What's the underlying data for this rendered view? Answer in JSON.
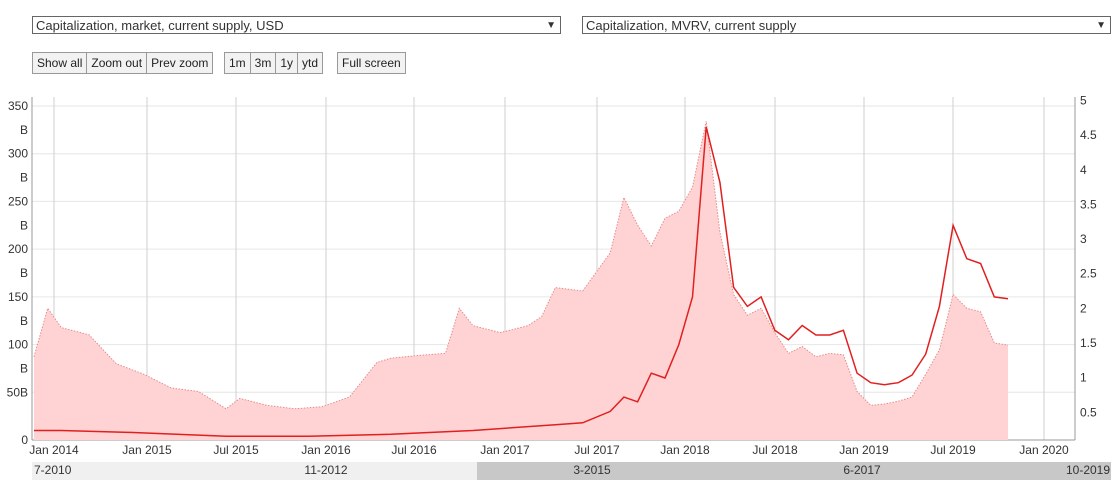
{
  "controls": {
    "left_select": "Capitalization, market, current supply, USD",
    "right_select": "Capitalization, MVRV, current supply",
    "zoom_buttons": [
      "Show all",
      "Zoom out",
      "Prev zoom"
    ],
    "range_buttons": [
      "1m",
      "3m",
      "1y",
      "ytd"
    ],
    "fullscreen_button": "Full screen",
    "dropdown_arrow": "▼"
  },
  "chart_data": {
    "type": "area",
    "x_ticks": [
      "Jan 2014",
      "Jan 2015",
      "Jul 2015",
      "Jan 2016",
      "Jul 2016",
      "Jan 2017",
      "Jul 2017",
      "Jan 2018",
      "Jul 2018",
      "Jan 2019",
      "Jul 2019",
      "Jan 2020"
    ],
    "x_range": [
      "2013-11",
      "2019-10"
    ],
    "y_left_ticks": [
      {
        "v": 0,
        "l1": "0",
        "l2": ""
      },
      {
        "v": 50,
        "l1": "50B",
        "l2": ""
      },
      {
        "v": 100,
        "l1": "100",
        "l2": "B"
      },
      {
        "v": 150,
        "l1": "150",
        "l2": "B"
      },
      {
        "v": 200,
        "l1": "200",
        "l2": "B"
      },
      {
        "v": 250,
        "l1": "250",
        "l2": "B"
      },
      {
        "v": 300,
        "l1": "300",
        "l2": "B"
      },
      {
        "v": 350,
        "l1": "350",
        "l2": "B"
      }
    ],
    "y_left_range": [
      0,
      350
    ],
    "y_right_ticks": [
      "0.5",
      "1",
      "1.5",
      "2",
      "2.5",
      "3",
      "3.5",
      "4",
      "4.5",
      "5"
    ],
    "y_right_range": [
      0.1,
      5.05
    ],
    "series": [
      {
        "axis": "right",
        "style": "dotted-area",
        "color": "#e88a8a",
        "fill": "#ffd3d3",
        "points": [
          [
            "2013-11",
            1.3
          ],
          [
            "2013-12",
            2.0
          ],
          [
            "2014-01",
            1.72
          ],
          [
            "2014-03",
            1.62
          ],
          [
            "2014-05",
            1.2
          ],
          [
            "2014-07",
            1.05
          ],
          [
            "2014-09",
            0.85
          ],
          [
            "2014-11",
            0.8
          ],
          [
            "2015-01",
            0.55
          ],
          [
            "2015-02",
            0.7
          ],
          [
            "2015-04",
            0.6
          ],
          [
            "2015-06",
            0.55
          ],
          [
            "2015-08",
            0.58
          ],
          [
            "2015-10",
            0.72
          ],
          [
            "2015-12",
            1.22
          ],
          [
            "2016-01",
            1.28
          ],
          [
            "2016-03",
            1.32
          ],
          [
            "2016-05",
            1.35
          ],
          [
            "2016-06",
            2.0
          ],
          [
            "2016-07",
            1.75
          ],
          [
            "2016-09",
            1.65
          ],
          [
            "2016-11",
            1.75
          ],
          [
            "2016-12",
            1.88
          ],
          [
            "2017-01",
            2.3
          ],
          [
            "2017-03",
            2.25
          ],
          [
            "2017-05",
            2.8
          ],
          [
            "2017-06",
            3.6
          ],
          [
            "2017-07",
            3.2
          ],
          [
            "2017-08",
            2.9
          ],
          [
            "2017-09",
            3.3
          ],
          [
            "2017-10",
            3.4
          ],
          [
            "2017-11",
            3.75
          ],
          [
            "2017-12",
            4.7
          ],
          [
            "2018-01",
            3.1
          ],
          [
            "2018-02",
            2.2
          ],
          [
            "2018-03",
            1.9
          ],
          [
            "2018-04",
            2.0
          ],
          [
            "2018-05",
            1.65
          ],
          [
            "2018-06",
            1.35
          ],
          [
            "2018-07",
            1.45
          ],
          [
            "2018-08",
            1.3
          ],
          [
            "2018-09",
            1.35
          ],
          [
            "2018-10",
            1.33
          ],
          [
            "2018-11",
            0.8
          ],
          [
            "2018-12",
            0.6
          ],
          [
            "2019-01",
            0.62
          ],
          [
            "2019-02",
            0.66
          ],
          [
            "2019-03",
            0.72
          ],
          [
            "2019-04",
            1.05
          ],
          [
            "2019-05",
            1.4
          ],
          [
            "2019-06",
            2.2
          ],
          [
            "2019-07",
            2.0
          ],
          [
            "2019-08",
            1.95
          ],
          [
            "2019-09",
            1.5
          ],
          [
            "2019-10",
            1.47
          ]
        ]
      },
      {
        "axis": "left",
        "style": "solid-line",
        "color": "#e02020",
        "points": [
          [
            "2013-11",
            10
          ],
          [
            "2014-01",
            10
          ],
          [
            "2014-06",
            8
          ],
          [
            "2015-01",
            4
          ],
          [
            "2015-07",
            4
          ],
          [
            "2016-01",
            6
          ],
          [
            "2016-07",
            10
          ],
          [
            "2017-01",
            16
          ],
          [
            "2017-03",
            18
          ],
          [
            "2017-05",
            30
          ],
          [
            "2017-06",
            45
          ],
          [
            "2017-07",
            40
          ],
          [
            "2017-08",
            70
          ],
          [
            "2017-09",
            65
          ],
          [
            "2017-10",
            100
          ],
          [
            "2017-11",
            150
          ],
          [
            "2017-12",
            328
          ],
          [
            "2018-01",
            270
          ],
          [
            "2018-02",
            160
          ],
          [
            "2018-03",
            140
          ],
          [
            "2018-04",
            150
          ],
          [
            "2018-05",
            115
          ],
          [
            "2018-06",
            105
          ],
          [
            "2018-07",
            120
          ],
          [
            "2018-08",
            110
          ],
          [
            "2018-09",
            110
          ],
          [
            "2018-10",
            115
          ],
          [
            "2018-11",
            70
          ],
          [
            "2018-12",
            60
          ],
          [
            "2019-01",
            58
          ],
          [
            "2019-02",
            60
          ],
          [
            "2019-03",
            68
          ],
          [
            "2019-04",
            90
          ],
          [
            "2019-05",
            140
          ],
          [
            "2019-06",
            225
          ],
          [
            "2019-07",
            190
          ],
          [
            "2019-08",
            185
          ],
          [
            "2019-09",
            150
          ],
          [
            "2019-10",
            148
          ]
        ]
      }
    ]
  },
  "navigator": {
    "labels": [
      "7-2010",
      "11-2012",
      "3-2015",
      "6-2017",
      "10-2019"
    ],
    "window_start": "3-2015"
  }
}
